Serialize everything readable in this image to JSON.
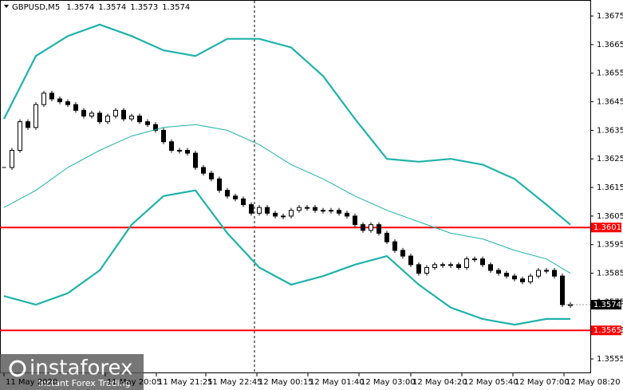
{
  "chart_data": {
    "type": "candlestick",
    "title": "GBPUSD,M5",
    "header_values": [
      1.3574,
      1.3574,
      1.3573,
      1.3574
    ],
    "last_price": 1.3574,
    "xlim": [
      -0.5,
      73.5
    ],
    "ylim": [
      1.355,
      1.36806
    ],
    "yticks": [
      1.3675,
      1.3665,
      1.3655,
      1.3645,
      1.3635,
      1.3625,
      1.3615,
      1.3605,
      1.3595,
      1.3585,
      1.3575,
      1.3565,
      1.3555
    ],
    "xticks": [
      {
        "value": 0,
        "label": "11 May 2020"
      },
      {
        "value": 12.7,
        "label": "11 May 20:05"
      },
      {
        "value": 19.1,
        "label": "11 May 21:25"
      },
      {
        "value": 25.3,
        "label": "11 May 22:45"
      },
      {
        "value": 31.7,
        "label": "12 May 00:15"
      },
      {
        "value": 38.1,
        "label": "12 May 01:40"
      },
      {
        "value": 44.5,
        "label": "12 May 03:00"
      },
      {
        "value": 51,
        "label": "12 May 04:20"
      },
      {
        "value": 57.4,
        "label": "12 May 05:40"
      },
      {
        "value": 63.8,
        "label": "12 May 07:00"
      },
      {
        "value": 70.2,
        "label": "12 May 08:20"
      }
    ],
    "levels": [
      {
        "value": 1.3601,
        "color": "#ff0000"
      },
      {
        "value": 1.3565,
        "color": "#ff0000"
      }
    ],
    "series": [
      {
        "color": "#000000",
        "x": [
          0,
          1,
          2,
          3,
          4,
          5,
          6,
          7,
          8,
          9,
          10,
          11,
          12,
          13,
          14,
          15,
          16,
          17,
          18,
          19,
          20,
          21,
          22,
          23,
          24,
          25,
          26,
          27,
          28,
          29,
          30,
          31,
          32,
          33,
          34,
          35,
          36,
          37,
          38,
          39,
          40,
          41,
          42,
          43,
          44,
          45,
          46,
          47,
          48,
          49,
          50,
          51,
          52,
          53,
          54,
          55,
          56,
          57,
          58,
          59,
          60,
          61,
          62,
          63,
          64,
          65,
          66,
          67,
          68,
          69,
          70,
          71
        ],
        "values": [
          1.3622,
          1.3628,
          1.3638,
          1.3636,
          1.3644,
          1.3648,
          1.3646,
          1.3645,
          1.3644,
          1.3642,
          1.364,
          1.3641,
          1.3638,
          1.364,
          1.3642,
          1.3639,
          1.364,
          1.3638,
          1.3637,
          1.3635,
          1.3631,
          1.3628,
          1.3628,
          1.3627,
          1.3622,
          1.362,
          1.3618,
          1.3614,
          1.3612,
          1.3611,
          1.3609,
          1.3606,
          1.3608,
          1.3606,
          1.3605,
          1.3605,
          1.3607,
          1.3608,
          1.3608,
          1.3607,
          1.3607,
          1.3607,
          1.3606,
          1.3605,
          1.3602,
          1.36,
          1.3602,
          1.3599,
          1.3596,
          1.3593,
          1.3591,
          1.3588,
          1.3585,
          1.3587,
          1.3588,
          1.3588,
          1.3588,
          1.3587,
          1.359,
          1.359,
          1.3588,
          1.3586,
          1.3585,
          1.3584,
          1.3583,
          1.3582,
          1.3584,
          1.3586,
          1.3586,
          1.3584,
          1.3574,
          1.3574
        ]
      },
      {
        "color": "#20b2aa",
        "x": [
          0,
          4,
          8,
          12,
          16,
          20,
          24,
          28,
          32,
          36,
          40,
          44,
          48,
          52,
          56,
          60,
          64,
          68,
          71
        ],
        "values": [
          1.3639,
          1.3661,
          1.3668,
          1.3672,
          1.3668,
          1.3663,
          1.3661,
          1.3667,
          1.3667,
          1.3664,
          1.3654,
          1.3639,
          1.3625,
          1.3624,
          1.3625,
          1.3623,
          1.3618,
          1.3609,
          1.3602
        ]
      },
      {
        "color": "#20b2aa",
        "x": [
          0,
          4,
          8,
          12,
          16,
          20,
          24,
          28,
          32,
          36,
          40,
          44,
          48,
          52,
          56,
          60,
          64,
          68,
          71
        ],
        "values": [
          1.3608,
          1.3614,
          1.3622,
          1.3628,
          1.3633,
          1.3636,
          1.3637,
          1.3635,
          1.363,
          1.3623,
          1.3618,
          1.3612,
          1.3607,
          1.3603,
          1.3599,
          1.3597,
          1.3593,
          1.359,
          1.3585
        ]
      },
      {
        "color": "#20b2aa",
        "x": [
          0,
          4,
          8,
          12,
          16,
          20,
          24,
          28,
          32,
          36,
          40,
          44,
          48,
          52,
          56,
          60,
          64,
          68,
          71
        ],
        "values": [
          1.3577,
          1.3574,
          1.3578,
          1.3586,
          1.3602,
          1.3612,
          1.3614,
          1.3599,
          1.3587,
          1.3581,
          1.3584,
          1.3588,
          1.3591,
          1.3581,
          1.3573,
          1.3569,
          1.3567,
          1.3569,
          1.3569
        ]
      }
    ],
    "watermark": {
      "brand": "instaforex",
      "tagline": "Instant Forex Trading"
    }
  }
}
